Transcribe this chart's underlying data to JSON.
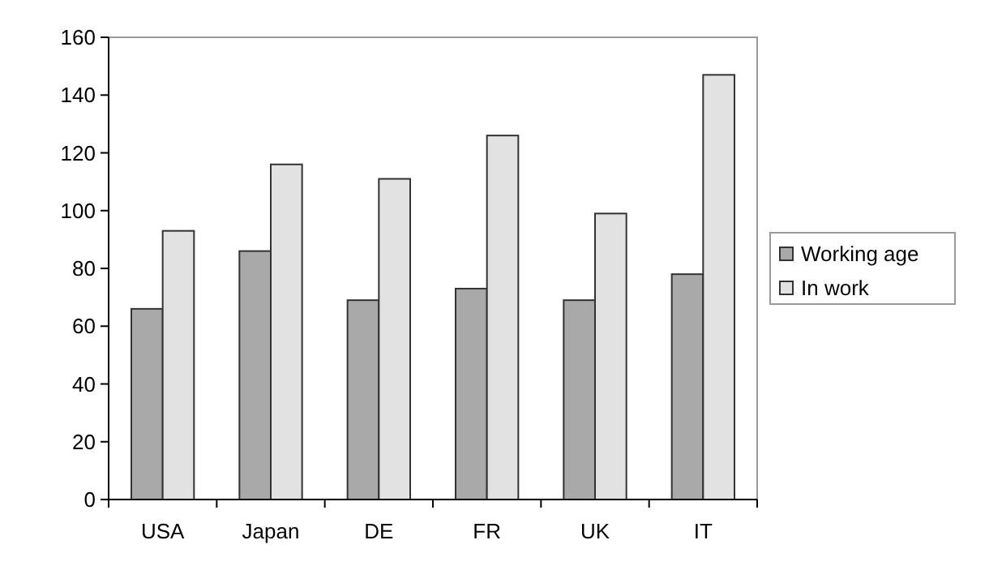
{
  "chart_data": {
    "type": "bar",
    "categories": [
      "USA",
      "Japan",
      "DE",
      "FR",
      "UK",
      "IT"
    ],
    "series": [
      {
        "name": "Working age",
        "color": "#a9a9a9",
        "values": [
          66,
          86,
          69,
          73,
          69,
          78
        ]
      },
      {
        "name": "In work",
        "color": "#e2e2e2",
        "values": [
          93,
          116,
          111,
          126,
          99,
          147
        ]
      }
    ],
    "ylim": [
      0,
      160
    ],
    "yticks": [
      0,
      20,
      40,
      60,
      80,
      100,
      120,
      140,
      160
    ],
    "grid": false,
    "legend": "right"
  }
}
